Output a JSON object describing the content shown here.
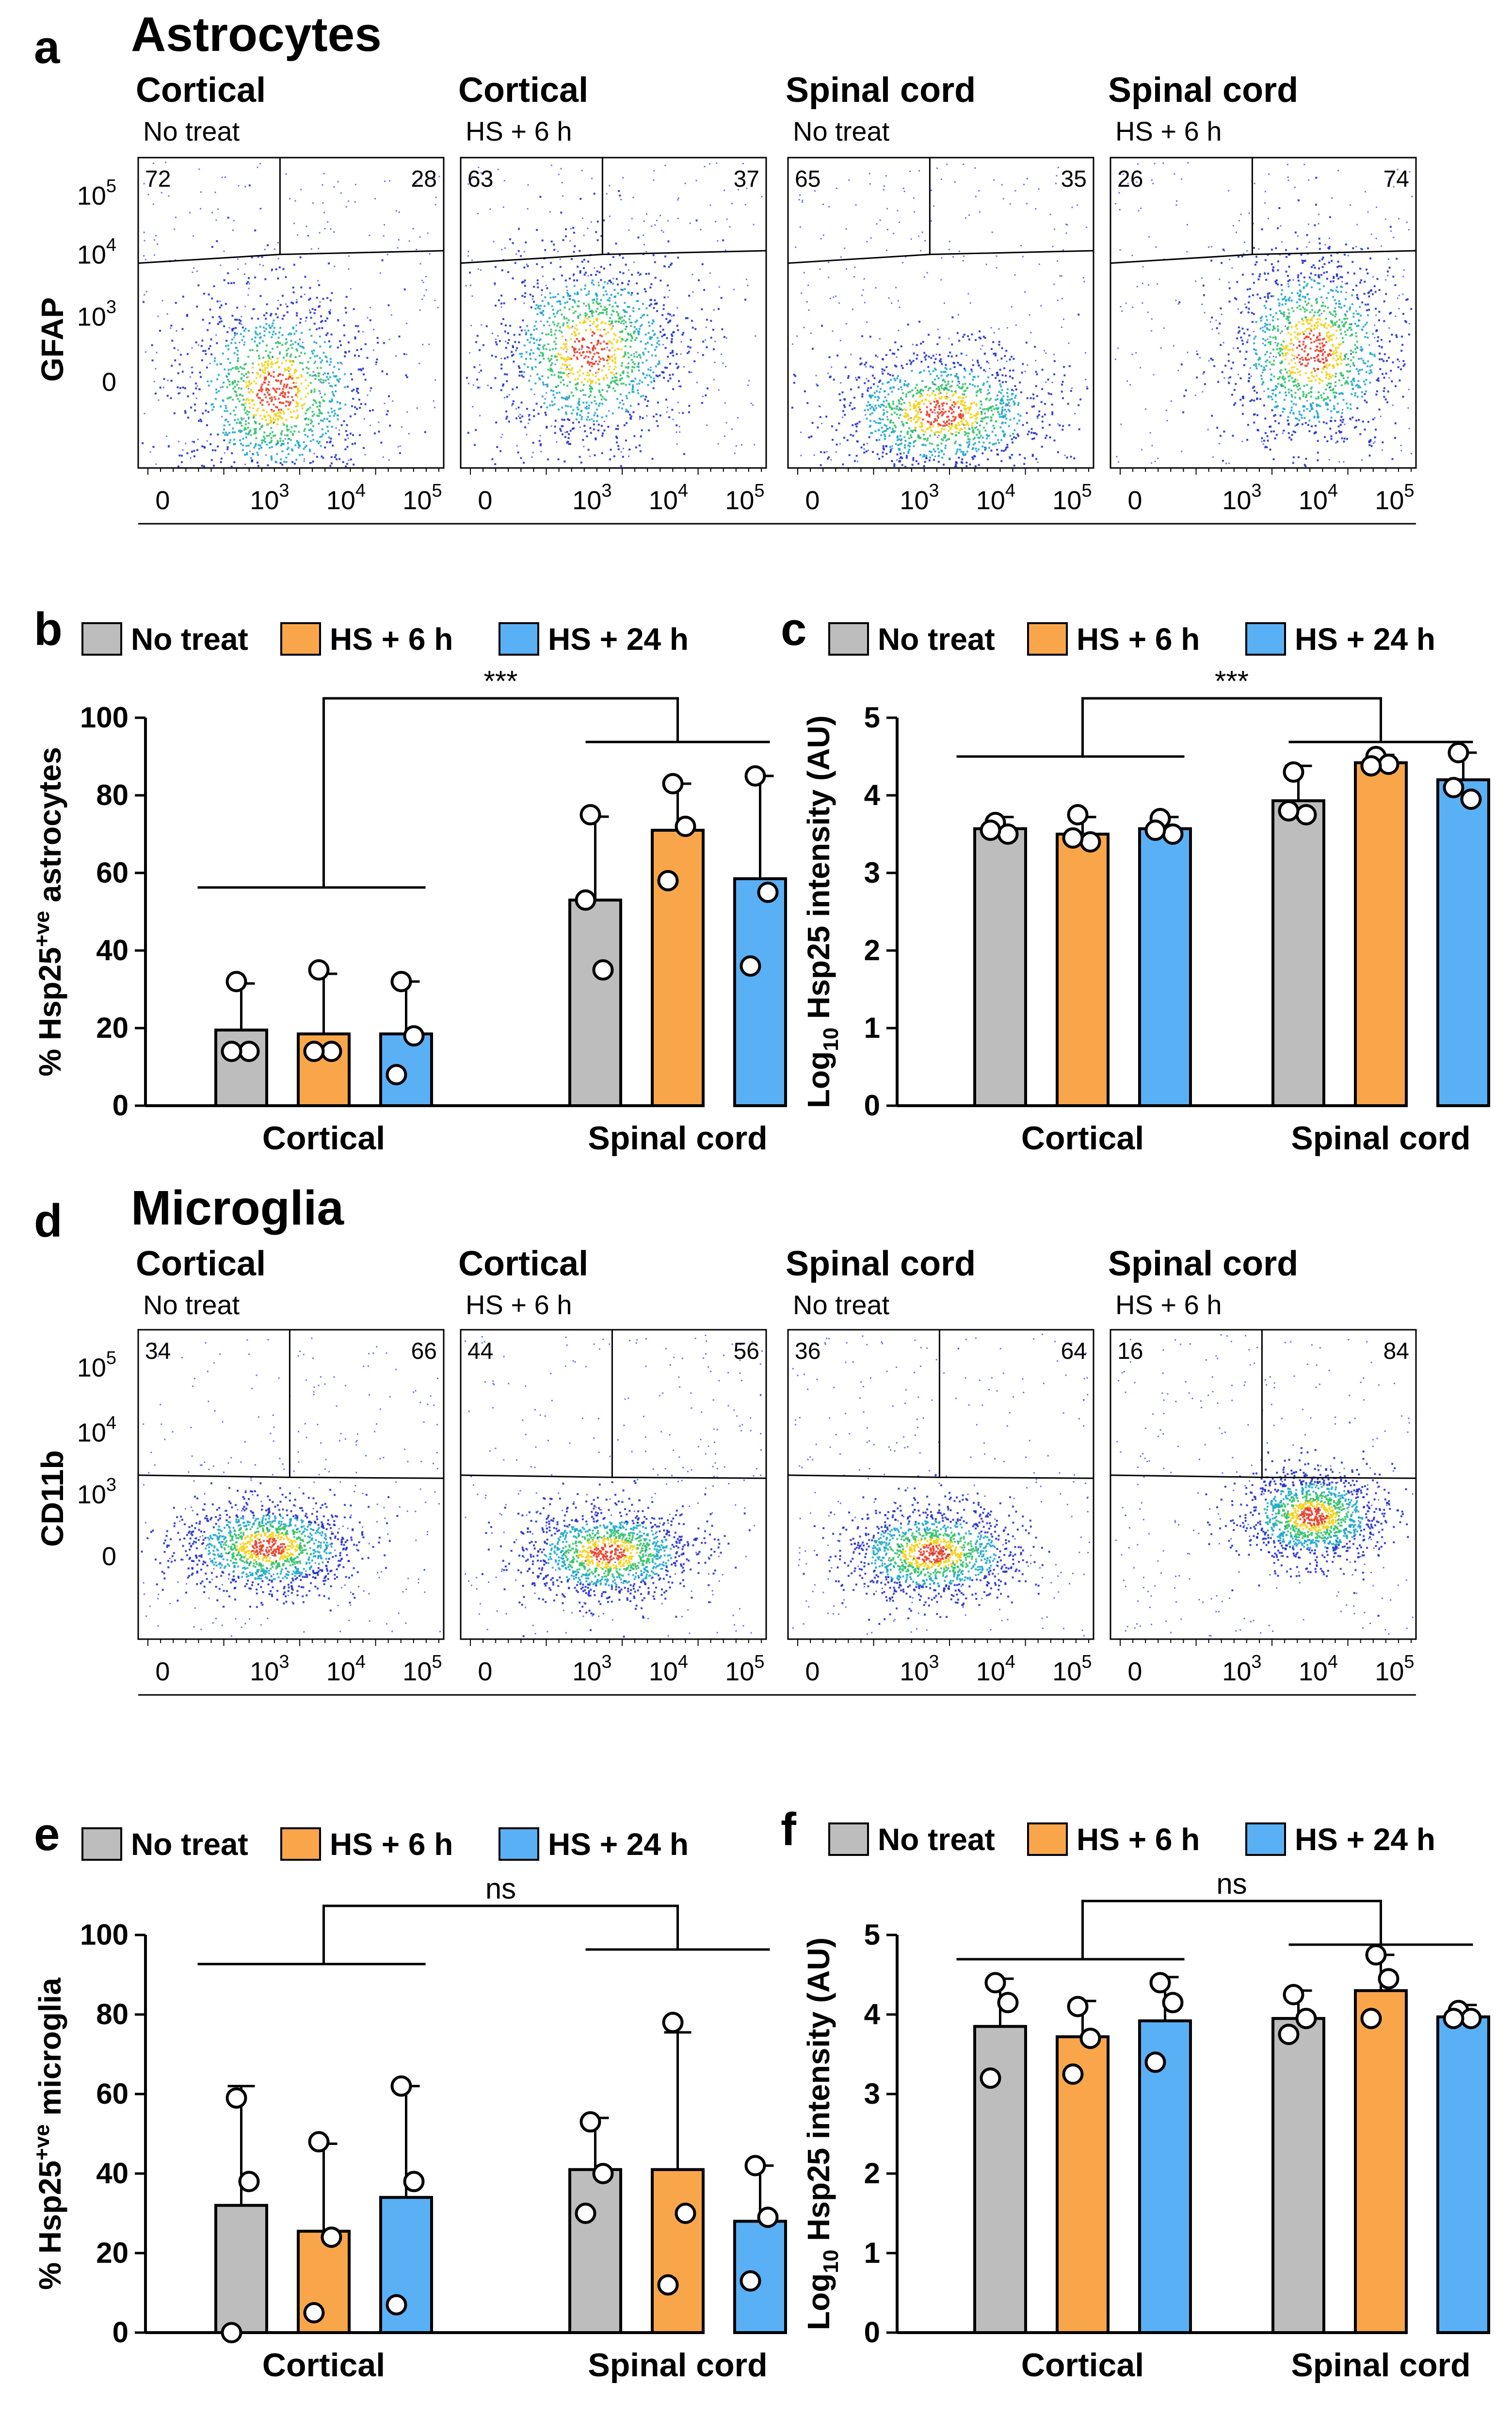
{
  "colors": {
    "no_treat": "#bdbdbd",
    "hs6": "#f9a64b",
    "hs24": "#5ab0f5",
    "stroke": "#000000"
  },
  "legend": [
    "No treat",
    "HS + 6 h",
    "HS + 24 h"
  ],
  "flow_panels": [
    {
      "panel_label": "a",
      "title": "Astrocytes",
      "y_marker": "GFAP",
      "x_ticks": [
        "0",
        "10",
        "10",
        "10"
      ],
      "x_exps": [
        "",
        "3",
        "4",
        "5"
      ],
      "y_ticks": [
        "10",
        "10",
        "10",
        "0"
      ],
      "y_exps": [
        "5",
        "4",
        "3",
        ""
      ],
      "plots": [
        {
          "region": "Cortical",
          "condition": "No treat",
          "q_left": "72",
          "q_right": "28"
        },
        {
          "region": "Cortical",
          "condition": "HS + 6 h",
          "q_left": "63",
          "q_right": "37"
        },
        {
          "region": "Spinal cord",
          "condition": "No treat",
          "q_left": "65",
          "q_right": "35"
        },
        {
          "region": "Spinal cord",
          "condition": "HS + 6 h",
          "q_left": "26",
          "q_right": "74"
        }
      ]
    },
    {
      "panel_label": "d",
      "title": "Microglia",
      "y_marker": "CD11b",
      "x_ticks": [
        "0",
        "10",
        "10",
        "10"
      ],
      "x_exps": [
        "",
        "3",
        "4",
        "5"
      ],
      "y_ticks": [
        "10",
        "10",
        "10",
        "0"
      ],
      "y_exps": [
        "5",
        "4",
        "3",
        ""
      ],
      "plots": [
        {
          "region": "Cortical",
          "condition": "No treat",
          "q_left": "34",
          "q_right": "66"
        },
        {
          "region": "Cortical",
          "condition": "HS + 6 h",
          "q_left": "44",
          "q_right": "56"
        },
        {
          "region": "Spinal cord",
          "condition": "No treat",
          "q_left": "36",
          "q_right": "64"
        },
        {
          "region": "Spinal cord",
          "condition": "HS + 6 h",
          "q_left": "16",
          "q_right": "84"
        }
      ]
    }
  ],
  "chart_data": [
    {
      "panel_label": "b",
      "type": "bar",
      "ylabel_main": "% Hsp25",
      "ylabel_sup": "+ve",
      "ylabel_tail": " astrocytes",
      "categories": [
        "Cortical",
        "Spinal cord"
      ],
      "ylim": [
        0,
        100
      ],
      "yticks": [
        0,
        20,
        40,
        60,
        80,
        100
      ],
      "significance": "***",
      "series": [
        {
          "name": "No treat",
          "values": [
            19.5,
            53
          ],
          "sd": [
            12,
            21.5
          ],
          "points": [
            [
              32,
              14,
              14
            ],
            [
              75,
              35,
              53
            ]
          ]
        },
        {
          "name": "HS + 6 h",
          "values": [
            18.5,
            71
          ],
          "sd": [
            15.5,
            12
          ],
          "points": [
            [
              35,
              14,
              14
            ],
            [
              83,
              72,
              58
            ]
          ]
        },
        {
          "name": "HS + 24 h",
          "values": [
            18.5,
            58.5
          ],
          "sd": [
            13.5,
            26.5
          ],
          "points": [
            [
              32,
              18,
              8
            ],
            [
              85,
              55,
              36
            ]
          ]
        }
      ]
    },
    {
      "panel_label": "c",
      "type": "bar",
      "ylabel_pre": "Log",
      "ylabel_sub": "10",
      "ylabel_post": " Hsp25 intensity (AU)",
      "categories": [
        "Cortical",
        "Spinal cord"
      ],
      "ylim": [
        0,
        5
      ],
      "yticks": [
        0,
        1,
        2,
        3,
        4,
        5
      ],
      "significance": "***",
      "series": [
        {
          "name": "No treat",
          "values": [
            3.57,
            3.93
          ],
          "sd": [
            0.15,
            0.45
          ],
          "points": [
            [
              3.65,
              3.5,
              3.55
            ],
            [
              4.3,
              3.75,
              3.8
            ]
          ]
        },
        {
          "name": "HS + 6 h",
          "values": [
            3.5,
            4.42
          ],
          "sd": [
            0.22,
            0.1
          ],
          "points": [
            [
              3.75,
              3.4,
              3.45
            ],
            [
              4.5,
              4.4,
              4.38
            ]
          ]
        },
        {
          "name": "HS + 24 h",
          "values": [
            3.57,
            4.2
          ],
          "sd": [
            0.15,
            0.35
          ],
          "points": [
            [
              3.7,
              3.5,
              3.55
            ],
            [
              4.55,
              3.95,
              4.1
            ]
          ]
        }
      ]
    },
    {
      "panel_label": "e",
      "type": "bar",
      "ylabel_main": "% Hsp25",
      "ylabel_sup": "+ve",
      "ylabel_tail": " microglia",
      "categories": [
        "Cortical",
        "Spinal cord"
      ],
      "ylim": [
        0,
        100
      ],
      "yticks": [
        0,
        20,
        40,
        60,
        80,
        100
      ],
      "significance": "ns",
      "series": [
        {
          "name": "No treat",
          "values": [
            32,
            41
          ],
          "sd": [
            30,
            13
          ],
          "points": [
            [
              59,
              38,
              0
            ],
            [
              53,
              40,
              30
            ]
          ]
        },
        {
          "name": "HS + 6 h",
          "values": [
            25.5,
            41
          ],
          "sd": [
            22,
            34.5
          ],
          "points": [
            [
              48,
              24,
              5
            ],
            [
              78,
              30,
              12
            ]
          ]
        },
        {
          "name": "HS + 24 h",
          "values": [
            34,
            28
          ],
          "sd": [
            28,
            14
          ],
          "points": [
            [
              62,
              38,
              7
            ],
            [
              42,
              29,
              13
            ]
          ]
        }
      ]
    },
    {
      "panel_label": "f",
      "type": "bar",
      "ylabel_pre": "Log",
      "ylabel_sub": "10",
      "ylabel_post": " Hsp25 intensity (AU)",
      "categories": [
        "Cortical",
        "Spinal cord"
      ],
      "ylim": [
        0,
        5
      ],
      "yticks": [
        0,
        1,
        2,
        3,
        4,
        5
      ],
      "significance": "ns",
      "series": [
        {
          "name": "No treat",
          "values": [
            3.85,
            3.95
          ],
          "sd": [
            0.6,
            0.35
          ],
          "points": [
            [
              4.4,
              4.15,
              3.2
            ],
            [
              4.25,
              3.95,
              3.75
            ]
          ]
        },
        {
          "name": "HS + 6 h",
          "values": [
            3.72,
            4.3
          ],
          "sd": [
            0.45,
            0.45
          ],
          "points": [
            [
              4.1,
              3.7,
              3.25
            ],
            [
              4.75,
              4.45,
              3.95
            ]
          ]
        },
        {
          "name": "HS + 24 h",
          "values": [
            3.92,
            3.97
          ],
          "sd": [
            0.55,
            0.15
          ],
          "points": [
            [
              4.4,
              4.15,
              3.4
            ],
            [
              4.05,
              3.95,
              3.95
            ]
          ]
        }
      ]
    }
  ]
}
